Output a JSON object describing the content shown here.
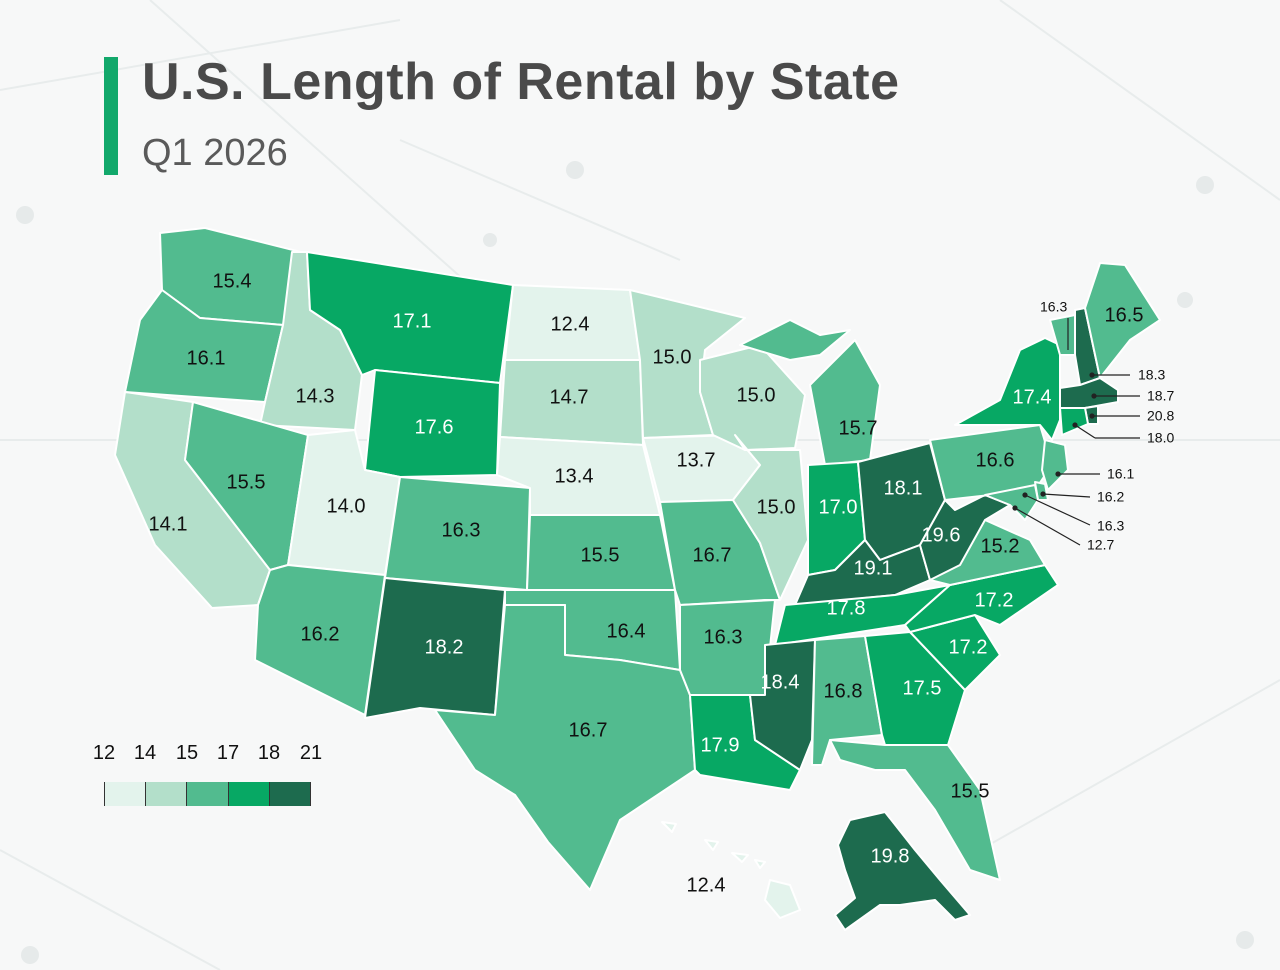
{
  "title": "U.S. Length of Rental by State",
  "subtitle": "Q1 2026",
  "colors": {
    "bin1": "#e3f3ec",
    "bin2": "#b3dfca",
    "bin3": "#52bb8f",
    "bin4": "#07a864",
    "bin5": "#1d6b4e",
    "accent": "#12a86b"
  },
  "legend": {
    "ticks": [
      "12",
      "14",
      "15",
      "17",
      "18",
      "21"
    ],
    "bins": [
      "bin1",
      "bin2",
      "bin3",
      "bin4",
      "bin5"
    ]
  },
  "states": [
    {
      "name": "WA",
      "value": "15.4",
      "bin": "bin3"
    },
    {
      "name": "OR",
      "value": "16.1",
      "bin": "bin3"
    },
    {
      "name": "CA",
      "value": "14.1",
      "bin": "bin2"
    },
    {
      "name": "ID",
      "value": "14.3",
      "bin": "bin2"
    },
    {
      "name": "NV",
      "value": "15.5",
      "bin": "bin3"
    },
    {
      "name": "MT",
      "value": "17.1",
      "bin": "bin4"
    },
    {
      "name": "WY",
      "value": "17.6",
      "bin": "bin4"
    },
    {
      "name": "UT",
      "value": "14.0",
      "bin": "bin1"
    },
    {
      "name": "AZ",
      "value": "16.2",
      "bin": "bin3"
    },
    {
      "name": "CO",
      "value": "16.3",
      "bin": "bin3"
    },
    {
      "name": "NM",
      "value": "18.2",
      "bin": "bin5"
    },
    {
      "name": "ND",
      "value": "12.4",
      "bin": "bin1"
    },
    {
      "name": "SD",
      "value": "14.7",
      "bin": "bin2"
    },
    {
      "name": "NE",
      "value": "13.4",
      "bin": "bin1"
    },
    {
      "name": "KS",
      "value": "15.5",
      "bin": "bin3"
    },
    {
      "name": "OK",
      "value": "16.4",
      "bin": "bin3"
    },
    {
      "name": "TX",
      "value": "16.7",
      "bin": "bin3"
    },
    {
      "name": "MN",
      "value": "15.0",
      "bin": "bin2"
    },
    {
      "name": "IA",
      "value": "13.7",
      "bin": "bin1"
    },
    {
      "name": "MO",
      "value": "16.7",
      "bin": "bin3"
    },
    {
      "name": "AR",
      "value": "16.3",
      "bin": "bin3"
    },
    {
      "name": "LA",
      "value": "17.9",
      "bin": "bin4"
    },
    {
      "name": "WI",
      "value": "15.0",
      "bin": "bin2"
    },
    {
      "name": "IL",
      "value": "15.0",
      "bin": "bin2"
    },
    {
      "name": "MI",
      "value": "15.7",
      "bin": "bin3"
    },
    {
      "name": "IN",
      "value": "17.0",
      "bin": "bin4"
    },
    {
      "name": "OH",
      "value": "18.1",
      "bin": "bin5"
    },
    {
      "name": "KY",
      "value": "19.1",
      "bin": "bin5"
    },
    {
      "name": "TN",
      "value": "17.8",
      "bin": "bin4"
    },
    {
      "name": "MS",
      "value": "18.4",
      "bin": "bin5"
    },
    {
      "name": "AL",
      "value": "16.8",
      "bin": "bin3"
    },
    {
      "name": "GA",
      "value": "17.5",
      "bin": "bin4"
    },
    {
      "name": "FL",
      "value": "15.5",
      "bin": "bin3"
    },
    {
      "name": "SC",
      "value": "17.2",
      "bin": "bin4"
    },
    {
      "name": "NC",
      "value": "17.2",
      "bin": "bin4"
    },
    {
      "name": "VA",
      "value": "15.2",
      "bin": "bin3"
    },
    {
      "name": "WV",
      "value": "19.6",
      "bin": "bin5"
    },
    {
      "name": "PA",
      "value": "16.6",
      "bin": "bin3"
    },
    {
      "name": "NY",
      "value": "17.4",
      "bin": "bin4"
    },
    {
      "name": "ME",
      "value": "16.5",
      "bin": "bin3"
    },
    {
      "name": "VT",
      "value": "16.3",
      "bin": "bin3"
    },
    {
      "name": "NH",
      "value": "18.3",
      "bin": "bin5"
    },
    {
      "name": "MA",
      "value": "18.7",
      "bin": "bin5"
    },
    {
      "name": "RI",
      "value": "20.8",
      "bin": "bin5"
    },
    {
      "name": "CT",
      "value": "18.0",
      "bin": "bin4"
    },
    {
      "name": "NJ",
      "value": "16.1",
      "bin": "bin3"
    },
    {
      "name": "DE",
      "value": "16.2",
      "bin": "bin3"
    },
    {
      "name": "MD",
      "value": "16.3",
      "bin": "bin3"
    },
    {
      "name": "DC",
      "value": "12.7",
      "bin": "bin1"
    },
    {
      "name": "AK",
      "value": "19.8",
      "bin": "bin5"
    },
    {
      "name": "HI",
      "value": "12.4",
      "bin": "bin1"
    }
  ]
}
